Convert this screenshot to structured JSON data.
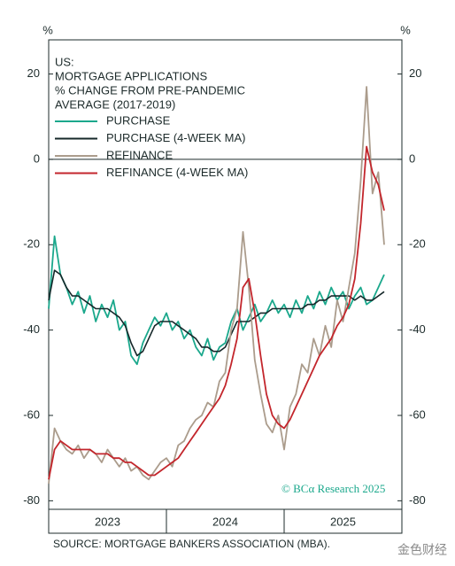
{
  "chart_data": {
    "type": "line",
    "title_lines": [
      "US:",
      "MORTGAGE APPLICATIONS",
      "% CHANGE FROM PRE-PANDEMIC",
      "AVERAGE (2017-2019)"
    ],
    "y_unit": "%",
    "source": "SOURCE: MORTGAGE BANKERS ASSOCIATION (MBA).",
    "watermark": "© BCα Research 2025",
    "logo": "金色财经",
    "x": [
      2023.0,
      2023.05,
      2023.1,
      2023.15,
      2023.2,
      2023.25,
      2023.3,
      2023.35,
      2023.4,
      2023.45,
      2023.5,
      2023.55,
      2023.6,
      2023.65,
      2023.7,
      2023.75,
      2023.8,
      2023.85,
      2023.9,
      2023.95,
      2024.0,
      2024.05,
      2024.1,
      2024.15,
      2024.2,
      2024.25,
      2024.3,
      2024.35,
      2024.4,
      2024.45,
      2024.5,
      2024.55,
      2024.6,
      2024.65,
      2024.7,
      2024.75,
      2024.8,
      2024.85,
      2024.9,
      2024.95,
      2025.0,
      2025.05,
      2025.1,
      2025.15,
      2025.2,
      2025.25,
      2025.3,
      2025.35,
      2025.4,
      2025.45,
      2025.5,
      2025.55,
      2025.6,
      2025.65,
      2025.7,
      2025.75,
      2025.8,
      2025.85
    ],
    "series": [
      {
        "name": "PURCHASE",
        "color": "#1ba88c",
        "width": 1.8,
        "values": [
          -35,
          -18,
          -27,
          -30,
          -34,
          -31,
          -36,
          -32,
          -38,
          -34,
          -37,
          -33,
          -40,
          -38,
          -46,
          -48,
          -43,
          -40,
          -37,
          -39,
          -36,
          -40,
          -38,
          -42,
          -40,
          -44,
          -46,
          -42,
          -47,
          -44,
          -43,
          -38,
          -35,
          -40,
          -37,
          -34,
          -38,
          -36,
          -33,
          -36,
          -34,
          -37,
          -33,
          -36,
          -32,
          -35,
          -31,
          -34,
          -30,
          -33,
          -31,
          -35,
          -32,
          -30,
          -34,
          -33,
          -30,
          -27
        ]
      },
      {
        "name": "PURCHASE (4-WEEK MA)",
        "color": "#16282a",
        "width": 1.6,
        "values": [
          -33,
          -26,
          -27,
          -30,
          -32,
          -32,
          -33,
          -34,
          -35,
          -35,
          -35,
          -36,
          -37,
          -39,
          -43,
          -46,
          -45,
          -42,
          -39,
          -38,
          -38,
          -38,
          -39,
          -40,
          -41,
          -42,
          -44,
          -44,
          -45,
          -45,
          -44,
          -41,
          -38,
          -38,
          -38,
          -37,
          -36,
          -36,
          -35,
          -35,
          -35,
          -35,
          -35,
          -35,
          -34,
          -34,
          -33,
          -33,
          -32,
          -32,
          -32,
          -32,
          -33,
          -32,
          -33,
          -33,
          -32,
          -31
        ]
      },
      {
        "name": "REFINANCE",
        "color": "#ab9c8c",
        "width": 1.8,
        "values": [
          -76,
          -63,
          -66,
          -68,
          -69,
          -67,
          -70,
          -68,
          -69,
          -71,
          -68,
          -70,
          -72,
          -70,
          -73,
          -72,
          -74,
          -75,
          -73,
          -71,
          -70,
          -72,
          -67,
          -66,
          -63,
          -61,
          -60,
          -57,
          -58,
          -52,
          -50,
          -40,
          -35,
          -17,
          -30,
          -47,
          -55,
          -62,
          -64,
          -60,
          -68,
          -58,
          -55,
          -48,
          -50,
          -42,
          -46,
          -39,
          -44,
          -33,
          -38,
          -30,
          -22,
          -5,
          17,
          -8,
          -3,
          -20
        ]
      },
      {
        "name": "REFINANCE (4-WEEK MA)",
        "color": "#c3262c",
        "width": 1.8,
        "values": [
          -75,
          -68,
          -66,
          -67,
          -68,
          -68,
          -68,
          -68,
          -69,
          -69,
          -69,
          -70,
          -70,
          -71,
          -71,
          -72,
          -73,
          -74,
          -74,
          -73,
          -72,
          -71,
          -70,
          -68,
          -66,
          -64,
          -62,
          -60,
          -58,
          -56,
          -53,
          -48,
          -42,
          -30,
          -28,
          -36,
          -46,
          -55,
          -60,
          -62,
          -63,
          -61,
          -58,
          -55,
          -52,
          -49,
          -46,
          -44,
          -42,
          -39,
          -37,
          -34,
          -28,
          -15,
          3,
          -3,
          -6,
          -12
        ]
      }
    ],
    "xlim": [
      2023,
      2026
    ],
    "xticks": [
      {
        "value": 2023.5,
        "label": "2023"
      },
      {
        "value": 2024.5,
        "label": "2024"
      },
      {
        "value": 2025.5,
        "label": "2025"
      }
    ],
    "x_separators": [
      2024,
      2025
    ],
    "ylim": [
      -82,
      28
    ],
    "yticks": [
      20,
      0,
      -20,
      -40,
      -60,
      -80
    ],
    "zero_line": 0
  }
}
